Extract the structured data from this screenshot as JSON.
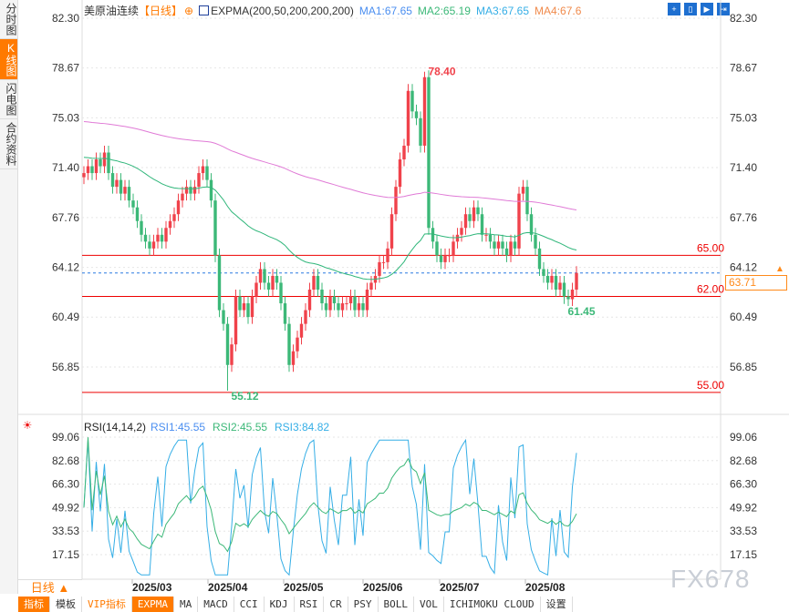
{
  "sidebar": {
    "tabs": [
      {
        "label": "分时图",
        "active": false
      },
      {
        "label": "K线图",
        "active": true
      },
      {
        "label": "闪电图",
        "active": false
      },
      {
        "label": "合约资料",
        "active": false
      }
    ]
  },
  "header": {
    "symbol": "美原油连续",
    "period": "【日线】",
    "indicator": "EXPMA(200,50,200,200,200)",
    "ma1": "MA1:67.65",
    "ma2": "MA2:65.19",
    "ma3": "MA3:67.65",
    "ma4": "MA4:67.6"
  },
  "colors": {
    "up": "#f0424b",
    "down": "#3cb878",
    "ma1": "#e07ad6",
    "ma2": "#2fb67a",
    "rsi1": "#35aee6",
    "rsi2": "#3cb878",
    "level": "#ee0000",
    "accent": "#ff7a00"
  },
  "price_axis": {
    "ticks": [
      "82.30",
      "78.67",
      "75.03",
      "71.40",
      "67.76",
      "64.12",
      "60.49",
      "56.85"
    ]
  },
  "levels": [
    "65.00",
    "62.00",
    "55.00"
  ],
  "annotations": {
    "high": "78.40",
    "low": "55.12",
    "recent_low": "61.45"
  },
  "last_price": "63.71",
  "rsi": {
    "title": "RSI(14,14,2)",
    "rsi1": "RSI1:45.55",
    "rsi2": "RSI2:45.55",
    "rsi3": "RSI3:84.82",
    "ticks": [
      "99.06",
      "82.68",
      "66.30",
      "49.92",
      "33.53",
      "17.15"
    ]
  },
  "dates": [
    "2025/03",
    "2025/04",
    "2025/05",
    "2025/06",
    "2025/07",
    "2025/08"
  ],
  "period_selector": "日线 ▲",
  "bottom_tabs": [
    "指标",
    "模板",
    "VIP指标",
    "EXPMA",
    "MA",
    "MACD",
    "CCI",
    "KDJ",
    "RSI",
    "CR",
    "PSY",
    "BOLL",
    "VOL",
    "ICHIMOKU CLOUD",
    "设置"
  ],
  "watermark": "FX678",
  "chart_data": {
    "type": "candlestick",
    "closes": [
      71,
      71.5,
      71,
      72,
      71.5,
      72.5,
      71,
      70,
      70.5,
      69.5,
      70,
      69,
      68.5,
      67.5,
      66.5,
      66,
      65.5,
      66,
      66.5,
      66,
      67,
      67.5,
      68,
      69,
      69.5,
      70,
      69.5,
      70,
      71,
      71.5,
      70.5,
      69,
      65,
      61,
      60,
      57,
      58.5,
      62,
      61,
      61.5,
      60.5,
      62,
      63,
      64,
      63,
      62.5,
      63.5,
      63,
      61.5,
      60,
      57,
      58,
      59,
      60,
      61,
      62.5,
      63.5,
      62.5,
      61.5,
      61,
      62,
      61.5,
      61,
      61.5,
      61.5,
      62,
      61,
      61.5,
      61,
      62.5,
      63,
      63.5,
      64.5,
      64.5,
      65.5,
      68,
      70,
      72,
      73,
      77,
      75.5,
      75,
      73,
      78,
      67,
      66,
      65,
      64.5,
      65,
      65,
      66,
      66.5,
      67,
      68,
      67.5,
      68.5,
      68,
      66.5,
      66.5,
      66,
      65.5,
      66,
      65.5,
      65,
      66,
      65.5,
      69.5,
      70,
      68,
      66.5,
      65.5,
      64,
      63.5,
      63,
      63.5,
      62.5,
      63,
      62,
      61.8,
      62.5,
      63.71
    ]
  }
}
